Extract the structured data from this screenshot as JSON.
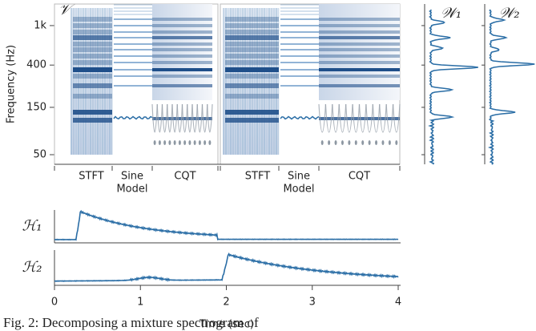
{
  "chart_data": {
    "type": "spectrogram",
    "ylabel": "Frequency (Hz)",
    "yscale": "log",
    "ylim": [
      40,
      1650
    ],
    "yticks": [
      {
        "value": 1000,
        "label": "1k"
      },
      400,
      150,
      50
    ],
    "title": "𝒱",
    "panels": [
      {
        "sections": [
          [
            "STFT"
          ],
          [
            "Sine",
            "Model"
          ],
          [
            "CQT"
          ]
        ]
      },
      {
        "sections": [
          [
            "STFT"
          ],
          [
            "Sine",
            "Model"
          ],
          [
            "CQT"
          ]
        ]
      }
    ],
    "templates": [
      "𝒲₁",
      "𝒲₂"
    ],
    "activations": [
      "ℋ₁",
      "ℋ₂"
    ],
    "xlabel": "Time (sec)",
    "xlim": [
      0,
      4
    ],
    "xticks": [
      0,
      1,
      2,
      3,
      4
    ],
    "color": "#2b6ea6"
  },
  "caption": "Fig. 2: Decomposing a mixture spectrogram of"
}
